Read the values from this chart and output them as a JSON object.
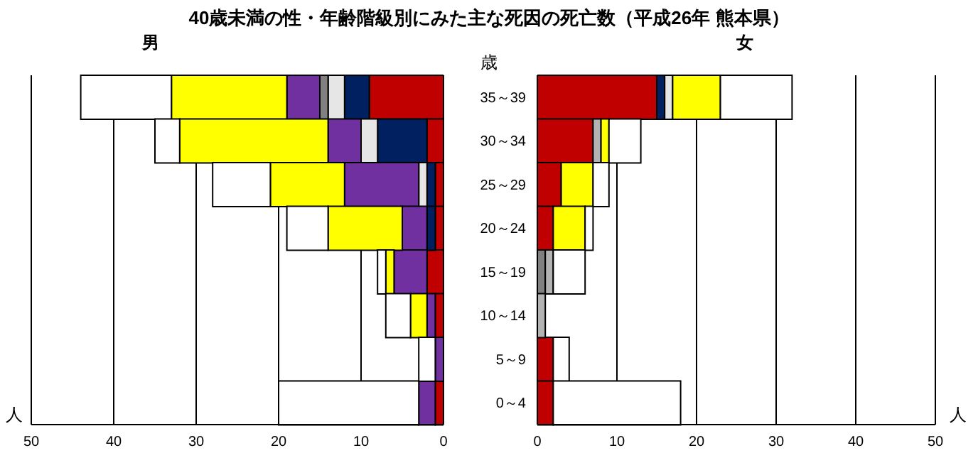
{
  "chart_data": [
    {
      "type": "bar",
      "orientation": "horizontal",
      "stacked": true,
      "title": "40歳未満の性・年齢階級別にみた主な死因の死亡数（平成26年 熊本県）",
      "subtitle": "男",
      "xlabel": "人",
      "categories": [
        null,
        null,
        null,
        null,
        null,
        null,
        null,
        null
      ],
      "xlim": [
        50,
        0
      ],
      "xticks": [
        50,
        40,
        30,
        20,
        10,
        0
      ],
      "grid": "x",
      "tick_labels": "x",
      "series": [
        {
          "color": "#c00000",
          "values": [
            9,
            2,
            1,
            1,
            2,
            1,
            null,
            1
          ]
        },
        {
          "color": "#002060",
          "values": [
            3,
            6,
            1,
            1,
            null,
            null,
            null,
            null
          ]
        },
        {
          "color": "#e6e6e6",
          "values": [
            2,
            2,
            1,
            null,
            null,
            null,
            null,
            null
          ]
        },
        {
          "color": "#808080",
          "values": [
            1,
            null,
            null,
            null,
            null,
            null,
            null,
            null
          ]
        },
        {
          "color": "#7030a0",
          "values": [
            4,
            4,
            9,
            3,
            4,
            1,
            1,
            2
          ]
        },
        {
          "color": "#ffff00",
          "values": [
            14,
            18,
            9,
            9,
            1,
            2,
            null,
            null
          ]
        },
        {
          "color": "#ffffff",
          "values": [
            11,
            3,
            7,
            5,
            1,
            3,
            2,
            17
          ]
        }
      ]
    },
    {
      "type": "bar",
      "orientation": "horizontal",
      "stacked": true,
      "subtitle": "女",
      "xlabel": "人",
      "ylabel": "歳",
      "categories": [
        "35～39",
        "30～34",
        "25～29",
        "20～24",
        "15～19",
        "10～14",
        "5～9",
        "0～4"
      ],
      "xlim": [
        0,
        50
      ],
      "xticks": [
        0,
        10,
        20,
        30,
        40,
        50
      ],
      "grid": "x",
      "series": [
        {
          "color": "#c00000",
          "values": [
            15,
            7,
            3,
            2,
            null,
            null,
            2,
            2
          ]
        },
        {
          "color": "#002060",
          "values": [
            1,
            null,
            null,
            null,
            null,
            null,
            null,
            null
          ]
        },
        {
          "color": "#e6e6e6",
          "values": [
            1,
            null,
            null,
            null,
            null,
            null,
            null,
            null
          ]
        },
        {
          "color": "#808080",
          "values": [
            null,
            null,
            null,
            null,
            1,
            null,
            null,
            null
          ]
        },
        {
          "color": "#b3b3b3",
          "values": [
            null,
            1,
            null,
            null,
            1,
            1,
            null,
            null
          ]
        },
        {
          "color": "#ffff00",
          "values": [
            6,
            1,
            4,
            4,
            null,
            null,
            null,
            null
          ]
        },
        {
          "color": "#ffffff",
          "values": [
            9,
            4,
            2,
            1,
            4,
            null,
            2,
            16
          ]
        }
      ]
    }
  ]
}
